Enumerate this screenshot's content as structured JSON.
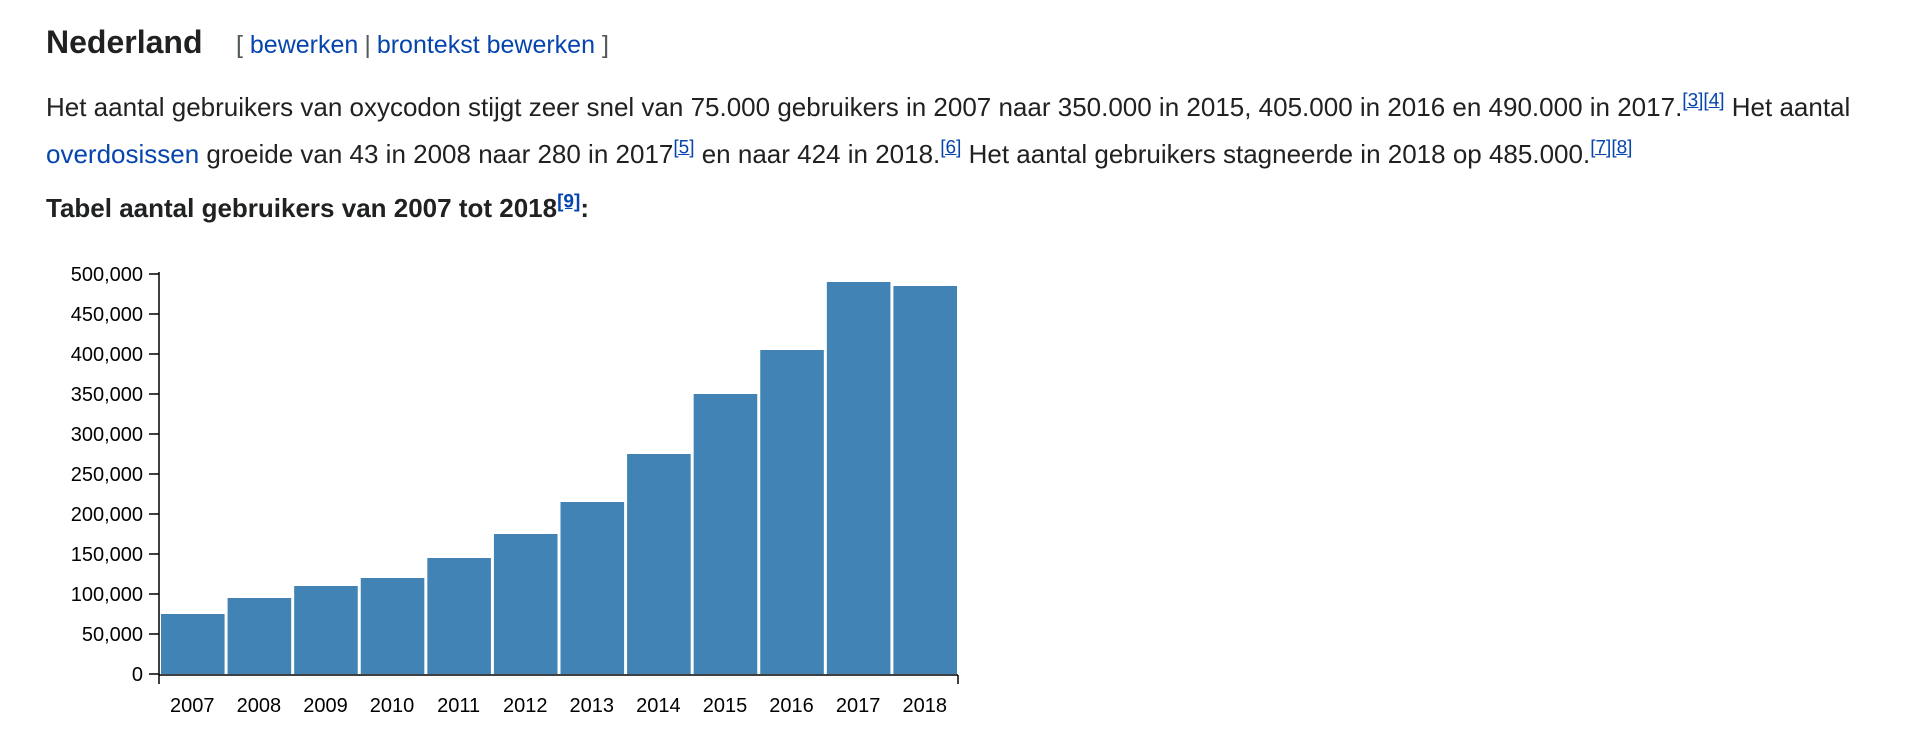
{
  "section": {
    "heading": "Nederland",
    "edit_open": "[",
    "edit_link": "bewerken",
    "edit_sep": "|",
    "source_edit_link": "brontekst bewerken",
    "edit_close": "]"
  },
  "paragraph": {
    "s1": "Het aantal gebruikers van oxycodon stijgt zeer snel van 75.000 gebruikers in 2007 naar 350.000 in 2015, 405.000 in 2016 en 490.000 in 2017.",
    "ref3": "[3]",
    "ref4": "[4]",
    "s2a": " Het aantal ",
    "link_overdoses": "overdosissen",
    "s2b": " groeide van 43 in 2008 naar 280 in 2017",
    "ref5": "[5]",
    "s2c": " en naar 424 in 2018.",
    "ref6": "[6]",
    "s3": " Het aantal gebruikers stagneerde in 2018 op 485.000.",
    "ref7": "[7]",
    "ref8": "[8]"
  },
  "caption": {
    "text": "Tabel aantal gebruikers van 2007 tot 2018",
    "ref9": "[9]",
    "colon": ":"
  },
  "chart_data": {
    "type": "bar",
    "title": "",
    "xlabel": "",
    "ylabel": "",
    "categories": [
      "2007",
      "2008",
      "2009",
      "2010",
      "2011",
      "2012",
      "2013",
      "2014",
      "2015",
      "2016",
      "2017",
      "2018"
    ],
    "values": [
      75000,
      95000,
      110000,
      120000,
      145000,
      175000,
      215000,
      275000,
      350000,
      405000,
      490000,
      485000
    ],
    "ylim": [
      0,
      500000
    ],
    "yticks": [
      0,
      50000,
      100000,
      150000,
      200000,
      250000,
      300000,
      350000,
      400000,
      450000,
      500000
    ],
    "ytick_labels": [
      "0",
      "50,000",
      "100,000",
      "150,000",
      "200,000",
      "250,000",
      "300,000",
      "350,000",
      "400,000",
      "450,000",
      "500,000"
    ],
    "bar_color": "#4183b5",
    "grid": false,
    "legend": "none"
  }
}
